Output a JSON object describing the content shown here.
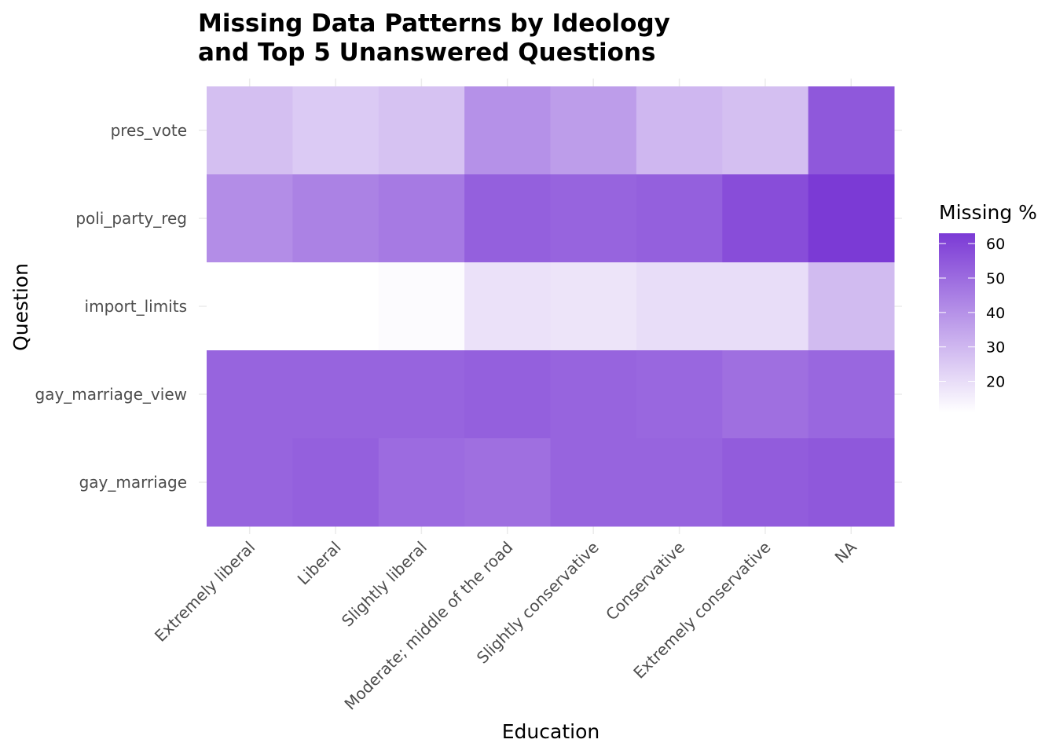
{
  "chart_data": {
    "type": "heatmap",
    "title_lines": [
      "Missing Data Patterns by Ideology",
      "and Top 5 Unanswered Questions"
    ],
    "xlabel": "Education",
    "ylabel": "Question",
    "x_categories": [
      "Extremely liberal",
      "Liberal",
      "Slightly liberal",
      "Moderate; middle of the road",
      "Slightly conservative",
      "Conservative",
      "Extremely conservative",
      "NA"
    ],
    "y_categories": [
      "pres_vote",
      "poli_party_reg",
      "import_limits",
      "gay_marriage_view",
      "gay_marriage"
    ],
    "values": [
      [
        28,
        25,
        27,
        40,
        37,
        30,
        28,
        55
      ],
      [
        41,
        44,
        46,
        53,
        52,
        53,
        58,
        63
      ],
      [
        11,
        11,
        12,
        19,
        18,
        20,
        20,
        29
      ],
      [
        52,
        52,
        52,
        53,
        52,
        51,
        49,
        51
      ],
      [
        52,
        53,
        50,
        49,
        52,
        52,
        54,
        55
      ]
    ],
    "legend": {
      "title": "Missing %",
      "position": "right",
      "range": [
        11,
        63
      ],
      "ticks": [
        20,
        30,
        40,
        50,
        60
      ],
      "color_low": "#ffffff",
      "color_high": "#7b3ad5"
    },
    "grid": true
  }
}
